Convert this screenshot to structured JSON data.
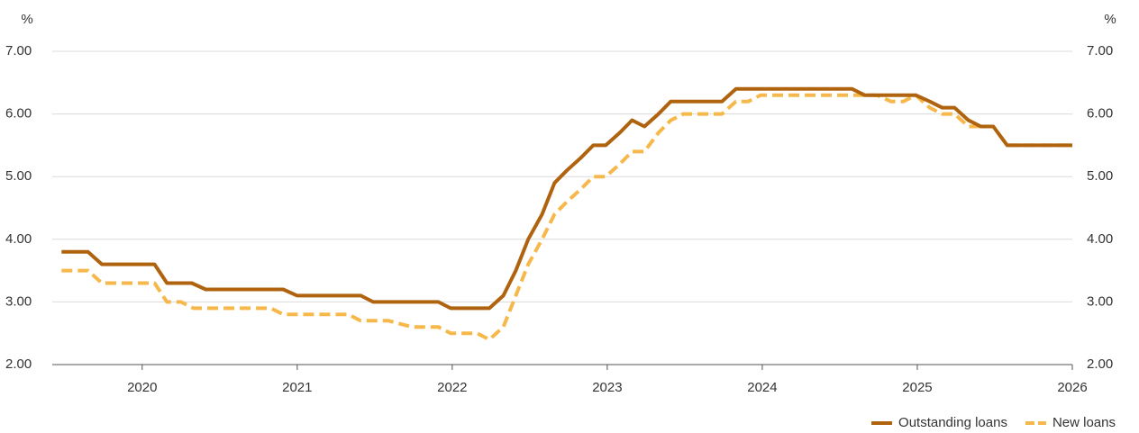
{
  "chart_data": {
    "type": "line",
    "y_unit": "%",
    "y2_unit": "%",
    "xlim": [
      2019.42,
      2026.0
    ],
    "xticks": [
      2020,
      2021,
      2022,
      2023,
      2024,
      2025,
      2026
    ],
    "ylim": [
      2,
      7
    ],
    "yticks": [
      {
        "value": 2,
        "label": "2.00"
      },
      {
        "value": 3,
        "label": "3.00"
      },
      {
        "value": 4,
        "label": "4.00"
      },
      {
        "value": 5,
        "label": "5.00"
      },
      {
        "value": 6,
        "label": "6.00"
      },
      {
        "value": 7,
        "label": "7.00"
      }
    ],
    "y2lim": [
      2,
      7
    ],
    "y2ticks": [
      {
        "value": 2,
        "label": "2.00"
      },
      {
        "value": 3,
        "label": "3.00"
      },
      {
        "value": 4,
        "label": "4.00"
      },
      {
        "value": 5,
        "label": "5.00"
      },
      {
        "value": 6,
        "label": "6.00"
      },
      {
        "value": 7,
        "label": "7.00"
      }
    ],
    "grid": true,
    "legend": "bottom-right",
    "series": [
      {
        "name": "Outstanding loans",
        "color": "#b0630f",
        "dashed": false,
        "x": [
          2019.48,
          2019.65,
          2019.74,
          2020.08,
          2020.16,
          2020.32,
          2020.41,
          2020.91,
          2021.0,
          2021.41,
          2021.49,
          2021.91,
          2021.99,
          2022.24,
          2022.33,
          2022.41,
          2022.49,
          2022.58,
          2022.66,
          2022.74,
          2022.83,
          2022.91,
          2022.99,
          2023.08,
          2023.16,
          2023.24,
          2023.33,
          2023.41,
          2023.74,
          2023.83,
          2024.58,
          2024.66,
          2024.99,
          2025.08,
          2025.16,
          2025.24,
          2025.33,
          2025.41,
          2025.49,
          2025.58,
          2026.0
        ],
        "values": [
          3.8,
          3.8,
          3.6,
          3.6,
          3.3,
          3.3,
          3.2,
          3.2,
          3.1,
          3.1,
          3.0,
          3.0,
          2.9,
          2.9,
          3.1,
          3.5,
          4.0,
          4.4,
          4.9,
          5.1,
          5.3,
          5.5,
          5.5,
          5.7,
          5.9,
          5.8,
          6.0,
          6.2,
          6.2,
          6.4,
          6.4,
          6.3,
          6.3,
          6.2,
          6.1,
          6.1,
          5.9,
          5.8,
          5.8,
          5.5,
          5.5
        ]
      },
      {
        "name": "New loans",
        "color": "#f7b84b",
        "dashed": true,
        "x": [
          2019.48,
          2019.65,
          2019.74,
          2020.08,
          2020.16,
          2020.25,
          2020.33,
          2020.83,
          2020.91,
          2021.33,
          2021.41,
          2021.59,
          2021.74,
          2021.91,
          2021.99,
          2022.16,
          2022.24,
          2022.33,
          2022.41,
          2022.49,
          2022.58,
          2022.66,
          2022.74,
          2022.83,
          2022.91,
          2022.99,
          2023.08,
          2023.16,
          2023.24,
          2023.33,
          2023.41,
          2023.49,
          2023.74,
          2023.83,
          2023.91,
          2023.99,
          2024.66,
          2024.74,
          2024.83,
          2024.91,
          2024.99,
          2025.08,
          2025.16,
          2025.24,
          2025.33,
          2025.49,
          2025.58,
          2026.0
        ],
        "values": [
          3.5,
          3.5,
          3.3,
          3.3,
          3.0,
          3.0,
          2.9,
          2.9,
          2.8,
          2.8,
          2.7,
          2.7,
          2.6,
          2.6,
          2.5,
          2.5,
          2.4,
          2.6,
          3.1,
          3.6,
          4.0,
          4.4,
          4.6,
          4.8,
          5.0,
          5.0,
          5.2,
          5.4,
          5.4,
          5.7,
          5.9,
          6.0,
          6.0,
          6.2,
          6.2,
          6.3,
          6.3,
          6.3,
          6.2,
          6.2,
          6.3,
          6.1,
          6.0,
          6.0,
          5.8,
          5.8,
          5.5,
          5.5
        ]
      }
    ]
  }
}
